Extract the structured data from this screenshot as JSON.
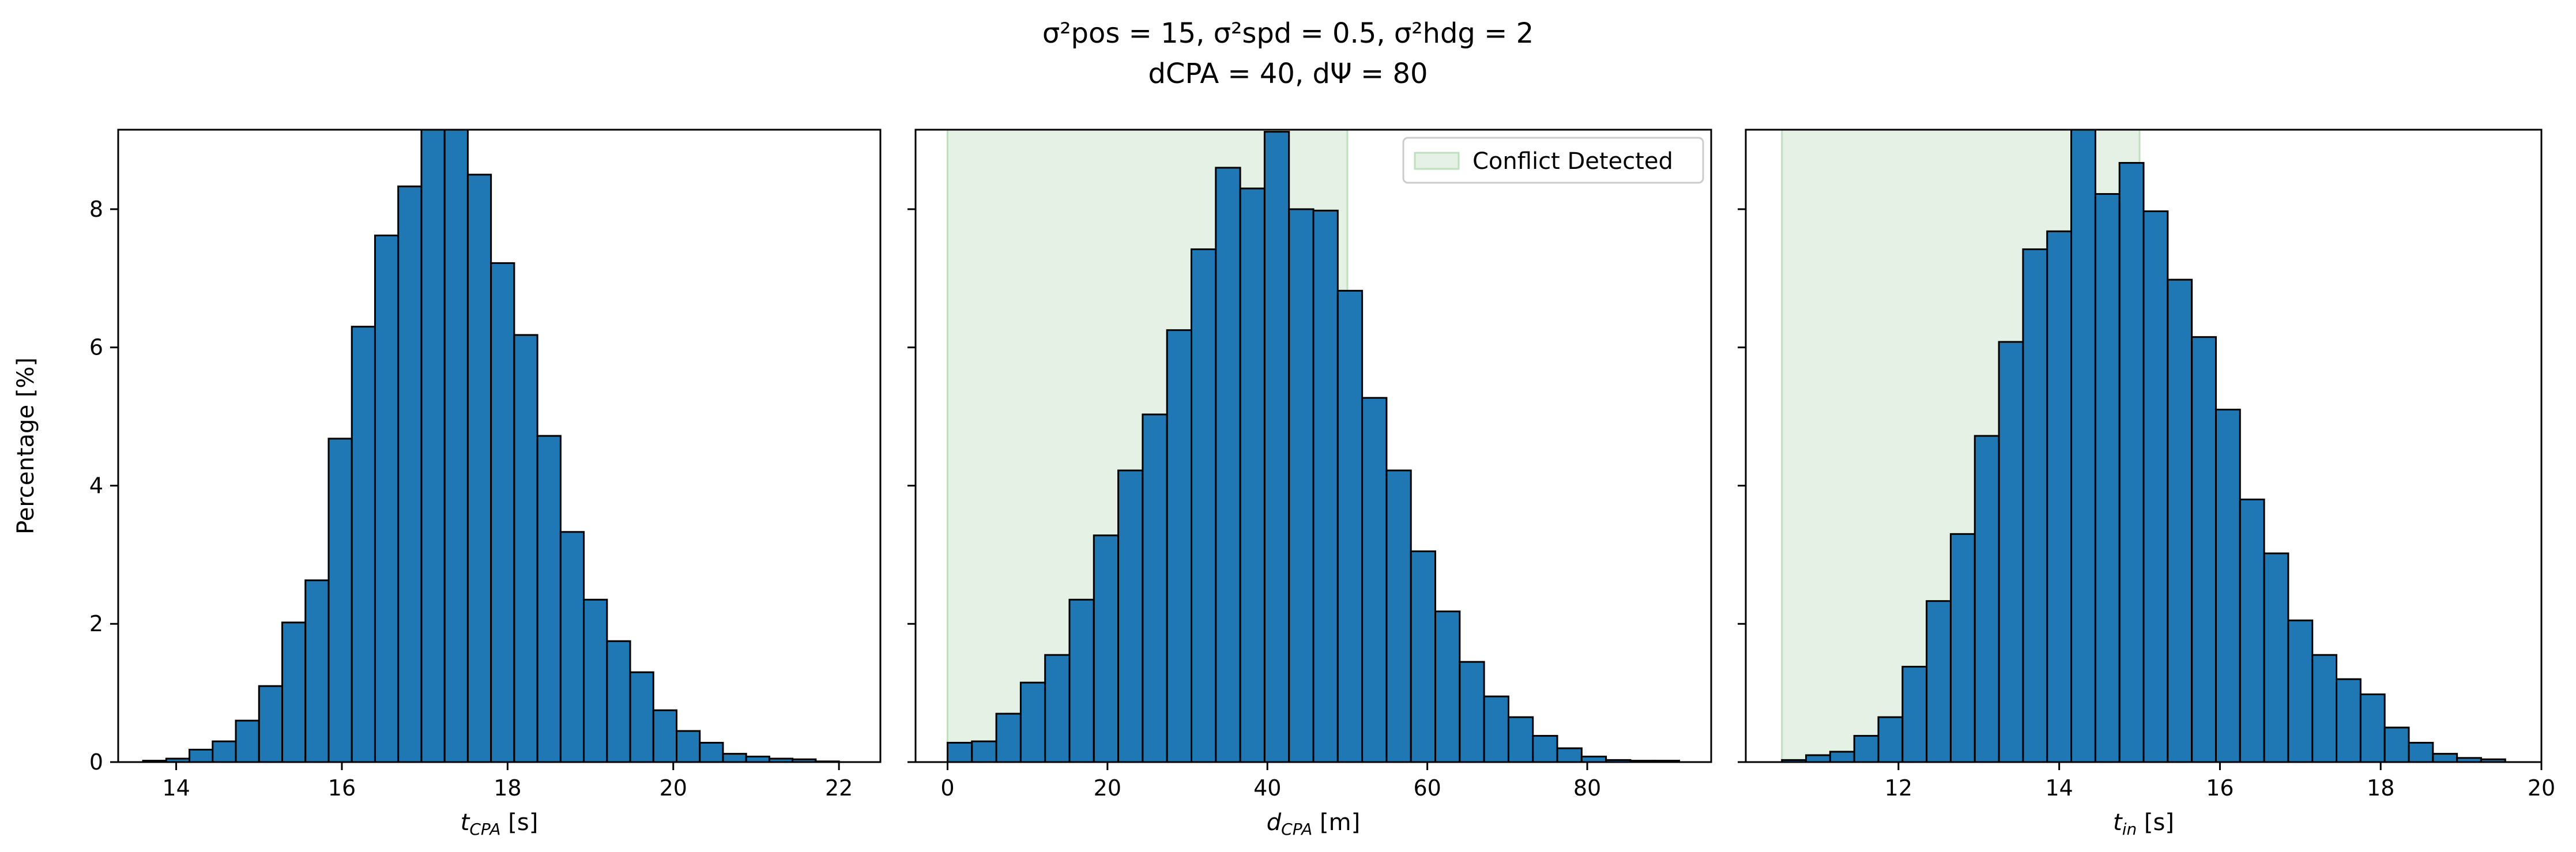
{
  "figure": {
    "title_line1": "σ²pos = 15, σ²spd = 0.5, σ²hdg = 2",
    "title_line2": "dCPA = 40, dΨ = 80"
  },
  "colors": {
    "bar_fill": "#1f77b4",
    "bar_edge": "#000000",
    "conflict_fill": "#e5f1e5",
    "conflict_edge": "#bfe0bf"
  },
  "chart_data": [
    {
      "type": "bar",
      "title": "",
      "xlabel": "t_CPA [s]",
      "ylabel": "Percentage [%]",
      "xlim": [
        13.3,
        22.5
      ],
      "ylim": [
        0,
        9.15
      ],
      "xticks": [
        14,
        16,
        18,
        20,
        22
      ],
      "yticks": [
        0,
        2,
        4,
        6,
        8
      ],
      "bin_start": 13.6,
      "bin_width": 0.28,
      "values": [
        0.02,
        0.05,
        0.18,
        0.3,
        0.6,
        1.1,
        2.02,
        2.63,
        4.68,
        6.3,
        7.62,
        8.33,
        9.8,
        9.7,
        8.5,
        7.22,
        6.18,
        4.72,
        3.33,
        2.35,
        1.75,
        1.3,
        0.75,
        0.45,
        0.28,
        0.12,
        0.08,
        0.05,
        0.04,
        0.01
      ],
      "conflict_region": null,
      "legend": null
    },
    {
      "type": "bar",
      "title": "",
      "xlabel": "d_CPA [m]",
      "ylabel": "",
      "xlim": [
        -4,
        95.5
      ],
      "ylim": [
        0,
        9.15
      ],
      "xticks": [
        0,
        20,
        40,
        60,
        80
      ],
      "yticks": [
        0,
        2,
        4,
        6,
        8
      ],
      "bin_start": 0,
      "bin_width": 3.05,
      "values": [
        0.28,
        0.3,
        0.7,
        1.15,
        1.55,
        2.35,
        3.28,
        4.22,
        5.03,
        6.25,
        7.42,
        8.6,
        8.3,
        9.12,
        8.0,
        7.98,
        6.82,
        5.27,
        4.22,
        3.05,
        2.18,
        1.45,
        0.95,
        0.65,
        0.38,
        0.2,
        0.08,
        0.03,
        0.02,
        0.02
      ],
      "conflict_region": [
        0,
        50
      ],
      "legend": {
        "label": "Conflict Detected",
        "position": "upper right"
      }
    },
    {
      "type": "bar",
      "title": "",
      "xlabel": "t_in [s]",
      "ylabel": "",
      "xlim": [
        10.1,
        20
      ],
      "ylim": [
        0,
        9.15
      ],
      "xticks": [
        12,
        14,
        16,
        18,
        20
      ],
      "yticks": [
        0,
        2,
        4,
        6,
        8
      ],
      "bin_start": 10.55,
      "bin_width": 0.3,
      "values": [
        0.03,
        0.1,
        0.15,
        0.38,
        0.65,
        1.38,
        2.33,
        3.3,
        4.72,
        6.08,
        7.42,
        7.68,
        9.7,
        8.22,
        8.67,
        7.97,
        6.98,
        6.15,
        5.1,
        3.8,
        3.02,
        2.05,
        1.55,
        1.2,
        0.98,
        0.5,
        0.28,
        0.12,
        0.06,
        0.04
      ],
      "conflict_region": [
        10.55,
        15.0
      ],
      "legend": null
    }
  ]
}
